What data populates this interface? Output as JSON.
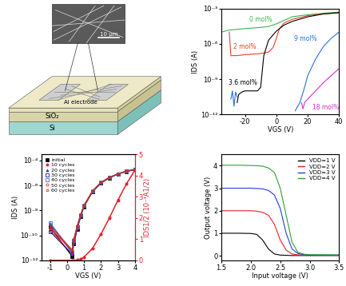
{
  "diagram": {
    "inset": {
      "scale_bar": "10 μm"
    },
    "labels": {
      "electrode": "Al electrode",
      "oxide": "SiO₂",
      "substrate": "Si"
    }
  },
  "chart_data": [
    {
      "type": "line",
      "x_label": "VGS (V)",
      "y_label": "IDS (A)",
      "log": "y",
      "xlim": [
        -35,
        40
      ],
      "xticks": [
        -20,
        0,
        20,
        40
      ],
      "ylim": [
        1e-12,
        0.001
      ],
      "yticks": [
        {
          "value": 1e-12,
          "label": "10⁻¹²"
        },
        {
          "value": 1e-09,
          "label": "10⁻⁹"
        },
        {
          "value": 1e-06,
          "label": "10⁻⁶"
        },
        {
          "value": 0.001,
          "label": "10⁻³"
        }
      ],
      "series": [
        {
          "name": "0 mol%",
          "color": "#3cb44b",
          "x": [
            -35,
            -30,
            -20,
            -10,
            -5,
            0,
            5,
            10,
            20,
            30,
            40
          ],
          "values": [
            1e-05,
            1.5e-05,
            2e-05,
            2.5e-05,
            3e-05,
            5e-05,
            0.0001,
            0.0002,
            0.0003,
            0.0004,
            0.0005
          ]
        },
        {
          "name": "2 mol%",
          "color": "#e8412c",
          "x": [
            -30,
            -29,
            -28,
            -25,
            -20,
            -10,
            -5,
            -2,
            0,
            2,
            5,
            10,
            20,
            30,
            40
          ],
          "values": [
            1e-05,
            1e-07,
            1e-07,
            1e-07,
            1.2e-07,
            1.5e-07,
            2e-07,
            5e-07,
            3e-06,
            2e-05,
            6e-05,
            0.00012,
            0.00025,
            0.00035,
            0.00045
          ]
        },
        {
          "name": "3.6 mol%",
          "color": "#000000",
          "x": [
            -25,
            -24,
            -22,
            -20,
            -15,
            -12,
            -10,
            -8,
            -5,
            -2,
            0,
            5,
            10,
            20,
            30,
            40
          ],
          "values": [
            1e-11,
            5e-11,
            8e-11,
            1e-10,
            1e-10,
            1e-10,
            2e-10,
            1e-07,
            2e-06,
            6e-06,
            1.2e-05,
            4e-05,
            8e-05,
            0.0002,
            0.00035,
            0.00045
          ]
        },
        {
          "name": "9 mol%",
          "color": "#2b6fd6",
          "x": [
            -29,
            -28,
            -27,
            -26,
            -25,
            -24,
            12,
            15,
            18,
            20,
            25,
            30,
            35,
            40
          ],
          "values": [
            2e-11,
            1e-10,
            5e-12,
            8e-11,
            3e-11,
            null,
            2e-12,
            1e-11,
            2e-10,
            2e-09,
            5e-08,
            6e-07,
            3e-06,
            1e-05
          ]
        },
        {
          "name": "18 mol%",
          "color": "#d62fcf",
          "x": [
            16,
            17,
            18,
            20,
            25,
            30,
            35,
            40
          ],
          "values": [
            1e-11,
            3e-12,
            1e-11,
            2e-11,
            1e-10,
            5e-10,
            2e-09,
            8e-09
          ]
        }
      ]
    },
    {
      "type": "line",
      "x_label": "VGS (V)",
      "y_label": "IDS (A)",
      "y2_label": "IDS1/2 (10⁻³A1/2)",
      "log": "y",
      "legend": "upper left",
      "x": [
        -1.0,
        0.3,
        0.4,
        0.6,
        0.8,
        1.0,
        1.5,
        2.0,
        2.5,
        3.0,
        3.5,
        4.0
      ],
      "xlim": [
        -1.5,
        4
      ],
      "xticks": [
        -1,
        0,
        1,
        2,
        3,
        4
      ],
      "ylim": [
        1e-12,
        0.0003
      ],
      "yticks": [
        {
          "value": 1e-12,
          "label": "10⁻¹²"
        },
        {
          "value": 1e-10,
          "label": "10⁻¹⁰"
        },
        {
          "value": 1e-08,
          "label": "10⁻⁸"
        },
        {
          "value": 1e-06,
          "label": "10⁻⁶"
        },
        {
          "value": 0.0001,
          "label": "10⁻⁴"
        }
      ],
      "y2lim": [
        0,
        5
      ],
      "y2ticks": [
        0,
        1,
        2,
        3,
        4,
        5
      ],
      "series": [
        {
          "name": "initial",
          "color": "#000000",
          "marker": "square",
          "values": [
            5e-10,
            2e-12,
            2e-11,
            3e-10,
            3e-09,
            2e-08,
            3e-07,
            1.5e-06,
            4e-06,
            8e-06,
            1.3e-05,
            1.8e-05
          ]
        },
        {
          "name": "10 cycles",
          "color": "#e8202a",
          "marker": "circle",
          "values": [
            3e-10,
            3e-12,
            2.5e-11,
            3.5e-10,
            3.2e-09,
            2.1e-08,
            3.1e-07,
            1.5e-06,
            4.1e-06,
            8.1e-06,
            1.3e-05,
            1.8e-05
          ]
        },
        {
          "name": "20 cycles",
          "color": "#1f3fd6",
          "marker": "triangle",
          "values": [
            8e-10,
            4e-12,
            3e-11,
            4e-10,
            3.5e-09,
            2.2e-08,
            3.2e-07,
            1.6e-06,
            4.2e-06,
            8.2e-06,
            1.35e-05,
            1.85e-05
          ]
        },
        {
          "name": "30 cycles",
          "color": "#1a1a6e",
          "marker": "square_open",
          "values": [
            2e-10,
            3e-12,
            3.5e-11,
            4.5e-10,
            3.8e-09,
            2.3e-08,
            3.3e-07,
            1.6e-06,
            4.2e-06,
            8.3e-06,
            1.35e-05,
            1.9e-05
          ]
        },
        {
          "name": "40 cycles",
          "color": "#2b6fd6",
          "marker": "square_open",
          "values": [
            1e-09,
            5e-12,
            4e-11,
            5e-10,
            4e-09,
            2.4e-08,
            3.4e-07,
            1.7e-06,
            4.3e-06,
            8.4e-06,
            1.4e-05,
            1.9e-05
          ]
        },
        {
          "name": "50 cycles",
          "color": "#e8202a",
          "marker": "circle_open",
          "values": [
            4e-10,
            6e-12,
            4.5e-11,
            5.5e-10,
            4.2e-09,
            2.5e-08,
            3.5e-07,
            1.7e-06,
            4.4e-06,
            8.5e-06,
            1.4e-05,
            1.95e-05
          ]
        },
        {
          "name": "60 cycles",
          "color": "#c0392b",
          "marker": "pentagon_open",
          "values": [
            6e-10,
            7e-12,
            5e-11,
            6e-10,
            4.5e-09,
            2.6e-08,
            3.6e-07,
            1.8e-06,
            4.5e-06,
            8.6e-06,
            1.45e-05,
            2e-05
          ]
        },
        {
          "axis": "y2",
          "color": "#e8202a",
          "marker": "circle",
          "values": [
            0,
            0,
            0,
            0.02,
            0.05,
            0.14,
            0.55,
            1.22,
            2.0,
            2.83,
            3.6,
            4.24
          ]
        },
        {
          "axis": "y2",
          "color": "#e8202a",
          "marker": "pentagon_open",
          "values": [
            0,
            0,
            0,
            0.02,
            0.06,
            0.15,
            0.57,
            1.25,
            2.02,
            2.86,
            3.62,
            4.28
          ]
        }
      ]
    },
    {
      "type": "line",
      "x_label": "Input voltage (V)",
      "y_label": "Output voltage (V)",
      "legend": "upper right",
      "x": [
        1.5,
        1.8,
        2.0,
        2.1,
        2.2,
        2.3,
        2.4,
        2.5,
        2.6,
        2.7,
        2.8,
        2.9,
        3.0,
        3.5
      ],
      "xlim": [
        1.5,
        3.5
      ],
      "xticks": [
        1.5,
        {
          "value": 2,
          "label": "2.0"
        },
        2.5,
        {
          "value": 3,
          "label": "3.0"
        },
        3.5
      ],
      "ylim": [
        -0.2,
        4.5
      ],
      "yticks": [
        0,
        1,
        2,
        3,
        4
      ],
      "series": [
        {
          "name": "VDD=1 V",
          "color": "#000000",
          "values": [
            1.0,
            1.0,
            0.99,
            0.95,
            0.7,
            0.3,
            0.08,
            0.03,
            0.02,
            0.01,
            0.01,
            0.01,
            0.01,
            0.01
          ]
        },
        {
          "name": "VDD=2 V",
          "color": "#e8202a",
          "values": [
            2.0,
            2.0,
            2.0,
            1.98,
            1.93,
            1.8,
            1.4,
            0.7,
            0.25,
            0.08,
            0.04,
            0.03,
            0.02,
            0.02
          ]
        },
        {
          "name": "VDD=3 V",
          "color": "#1f3fd6",
          "values": [
            3.0,
            3.0,
            3.0,
            2.99,
            2.97,
            2.9,
            2.7,
            2.1,
            1.0,
            0.3,
            0.1,
            0.05,
            0.03,
            0.03
          ]
        },
        {
          "name": "VDD=4 V",
          "color": "#2ca02c",
          "values": [
            4.02,
            4.02,
            4.01,
            4.0,
            3.98,
            3.9,
            3.7,
            3.0,
            1.8,
            0.6,
            0.15,
            0.07,
            0.05,
            0.04
          ]
        }
      ]
    }
  ]
}
